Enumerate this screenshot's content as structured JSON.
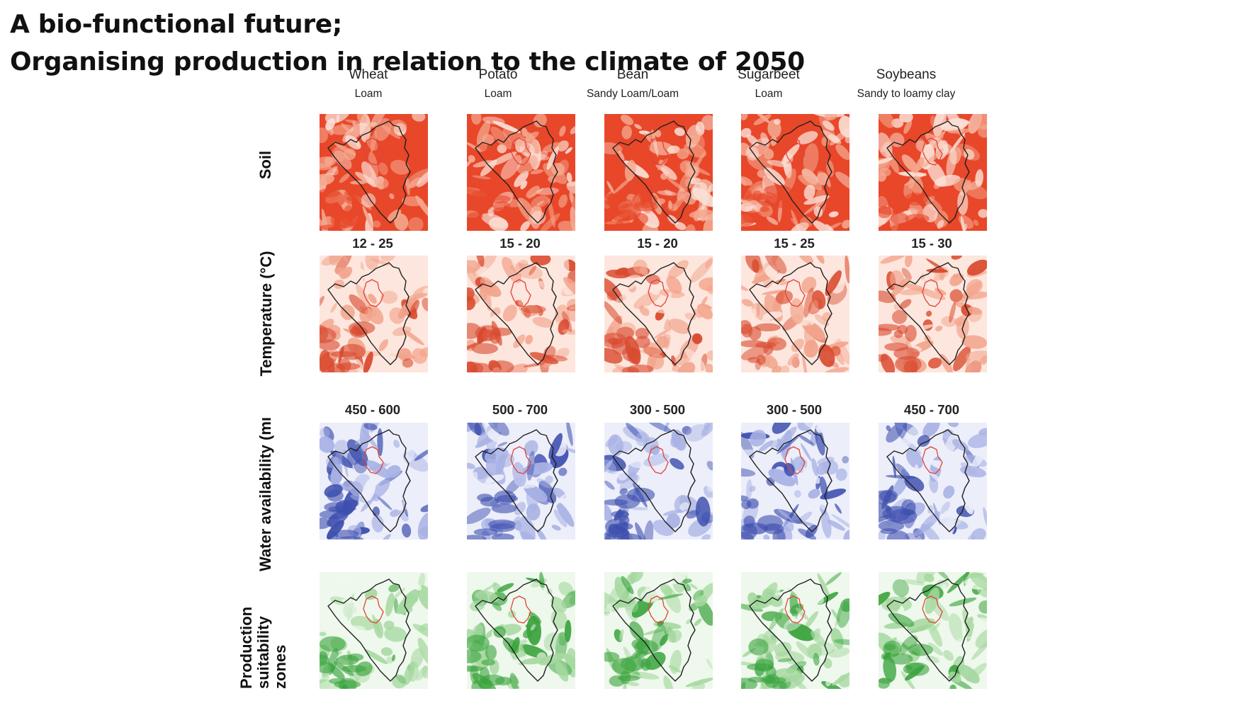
{
  "title": {
    "line1": "A bio-functional future;",
    "line2": "Organising production in relation to the climate of 2050"
  },
  "columns": [
    {
      "crop": "Wheat",
      "soil": "Loam",
      "temperature": "12 - 25",
      "water": "450 - 600"
    },
    {
      "crop": "Potato",
      "soil": "Loam",
      "temperature": "15 - 20",
      "water": "500 - 700"
    },
    {
      "crop": "Bean",
      "soil": "Sandy Loam/Loam",
      "temperature": "15 - 20",
      "water": "300 - 500"
    },
    {
      "crop": "Sugarbeet",
      "soil": "Loam",
      "temperature": "15 - 25",
      "water": "300 - 500"
    },
    {
      "crop": "Soybeans",
      "soil": "Sandy to loamy clay",
      "temperature": "15 - 30",
      "water": "450 - 700"
    }
  ],
  "rows": {
    "soil": "Soil",
    "temperature": "Temperature (°C)",
    "water": "Water availability (mı",
    "production": "Production suitability zones"
  },
  "colors": {
    "soil": [
      "#e8472a",
      "#f4a98f",
      "#fbe0d6"
    ],
    "temperature": [
      "#d94a2e",
      "#f2a48c",
      "#fde6dd"
    ],
    "water": [
      "#3d4fae",
      "#a9b2e4",
      "#eceefa"
    ],
    "production": [
      "#3aa33d",
      "#a6d8a0",
      "#eef8ec"
    ],
    "outline": "#1f1f1f",
    "inner_outline": "#e0453a"
  }
}
